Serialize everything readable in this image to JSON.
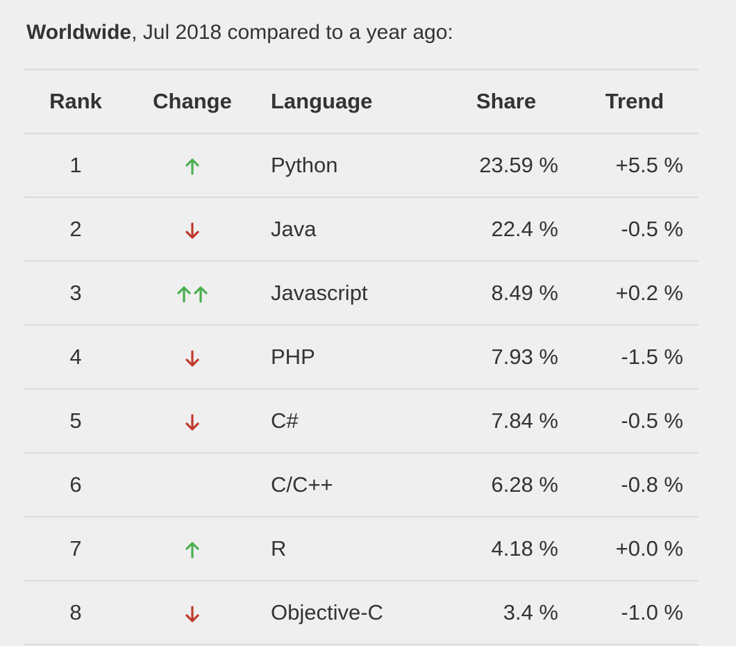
{
  "heading": {
    "bold": "Worldwide",
    "rest": ", Jul 2018 compared to a year ago:"
  },
  "columns": [
    "Rank",
    "Change",
    "Language",
    "Share",
    "Trend"
  ],
  "colors": {
    "up": "#4caf50",
    "down": "#c0392b"
  },
  "rows": [
    {
      "rank": "1",
      "change": "up",
      "language": "Python",
      "share": "23.59 %",
      "trend": "+5.5 %"
    },
    {
      "rank": "2",
      "change": "down",
      "language": "Java",
      "share": "22.4 %",
      "trend": "-0.5 %"
    },
    {
      "rank": "3",
      "change": "up-double",
      "language": "Javascript",
      "share": "8.49 %",
      "trend": "+0.2 %"
    },
    {
      "rank": "4",
      "change": "down",
      "language": "PHP",
      "share": "7.93 %",
      "trend": "-1.5 %"
    },
    {
      "rank": "5",
      "change": "down",
      "language": "C#",
      "share": "7.84 %",
      "trend": "-0.5 %"
    },
    {
      "rank": "6",
      "change": "none",
      "language": "C/C++",
      "share": "6.28 %",
      "trend": "-0.8 %"
    },
    {
      "rank": "7",
      "change": "up",
      "language": "R",
      "share": "4.18 %",
      "trend": "+0.0 %"
    },
    {
      "rank": "8",
      "change": "down",
      "language": "Objective-C",
      "share": "3.4 %",
      "trend": "-1.0 %"
    }
  ]
}
